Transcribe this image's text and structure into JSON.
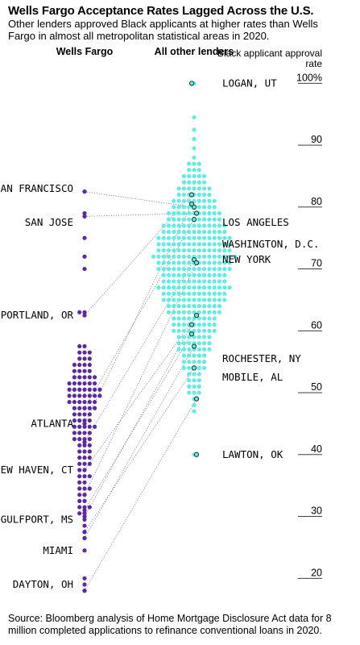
{
  "header": {
    "title": "Wells Fargo Acceptance Rates Lagged Across the U.S.",
    "subtitle": "Other lenders approved Black applicants at higher rates than Wells Fargo in almost all metropolitan statistical areas in 2020."
  },
  "footer": {
    "source": "Source: Bloomberg analysis of Home Mortgage Disclosure Act data for 8 million completed applications to refinance conventional loans in 2020."
  },
  "colors": {
    "wells_fargo": "#5b2aa0",
    "other_lenders": "#62ece2",
    "connector": "#7a7a7a",
    "highlight_ring": "#1f3a3a"
  },
  "chart_data": {
    "type": "scatter",
    "subtype": "beeswarm-slope",
    "series": [
      {
        "name": "Wells Fargo",
        "color": "#5b2aa0"
      },
      {
        "name": "All other lenders",
        "color": "#62ece2"
      }
    ],
    "y_axis": {
      "label": "Black applicant approval rate",
      "unit": "%",
      "range": [
        16,
        102
      ],
      "ticks": [
        {
          "value": 100,
          "label": "100%"
        },
        {
          "value": 90,
          "label": "90"
        },
        {
          "value": 80,
          "label": "80"
        },
        {
          "value": 70,
          "label": "70"
        },
        {
          "value": 60,
          "label": "60"
        },
        {
          "value": 50,
          "label": "50"
        },
        {
          "value": 40,
          "label": "40"
        },
        {
          "value": 30,
          "label": "30"
        },
        {
          "value": 20,
          "label": "20"
        }
      ]
    },
    "wells_fargo_distribution": [
      [
        82.5,
        1
      ],
      [
        79,
        1
      ],
      [
        78.5,
        1
      ],
      [
        75,
        1
      ],
      [
        72,
        1
      ],
      [
        70,
        1
      ],
      [
        63,
        2
      ],
      [
        57.5,
        2
      ],
      [
        56.5,
        3
      ],
      [
        55.5,
        3
      ],
      [
        54.5,
        4
      ],
      [
        53.5,
        4
      ],
      [
        52.5,
        5
      ],
      [
        51.5,
        6
      ],
      [
        50.5,
        7
      ],
      [
        49.5,
        7
      ],
      [
        48.5,
        6
      ],
      [
        47.5,
        5
      ],
      [
        46.5,
        4
      ],
      [
        45.5,
        4
      ],
      [
        44.5,
        5
      ],
      [
        43.5,
        4
      ],
      [
        42.5,
        4
      ],
      [
        41.5,
        3
      ],
      [
        40.5,
        3
      ],
      [
        39.5,
        3
      ],
      [
        38.5,
        3
      ],
      [
        37.5,
        2
      ],
      [
        36.5,
        3
      ],
      [
        35.5,
        2
      ],
      [
        34.5,
        3
      ],
      [
        33.5,
        2
      ],
      [
        32.5,
        2
      ],
      [
        31.5,
        3
      ],
      [
        30.5,
        2
      ],
      [
        29.5,
        1
      ],
      [
        28.5,
        1
      ],
      [
        27.5,
        1
      ],
      [
        26.5,
        1
      ],
      [
        24.5,
        1
      ],
      [
        20,
        1
      ],
      [
        19,
        1
      ],
      [
        18,
        1
      ]
    ],
    "other_lenders_distribution": [
      [
        100,
        1
      ],
      [
        94.5,
        1
      ],
      [
        92.5,
        1
      ],
      [
        91,
        1
      ],
      [
        89.5,
        1
      ],
      [
        88,
        1
      ],
      [
        87,
        3
      ],
      [
        86,
        3
      ],
      [
        85,
        5
      ],
      [
        84,
        5
      ],
      [
        83,
        7
      ],
      [
        82,
        7
      ],
      [
        81,
        9
      ],
      [
        80,
        9
      ],
      [
        79,
        11
      ],
      [
        78,
        11
      ],
      [
        77,
        13
      ],
      [
        76,
        13
      ],
      [
        75,
        15
      ],
      [
        74,
        15
      ],
      [
        73,
        15
      ],
      [
        72,
        17
      ],
      [
        71,
        15
      ],
      [
        70,
        15
      ],
      [
        69,
        13
      ],
      [
        68,
        13
      ],
      [
        67,
        15
      ],
      [
        66,
        13
      ],
      [
        65,
        13
      ],
      [
        64,
        11
      ],
      [
        63,
        11
      ],
      [
        62,
        9
      ],
      [
        61,
        9
      ],
      [
        60,
        9
      ],
      [
        59,
        7
      ],
      [
        58,
        7
      ],
      [
        57,
        7
      ],
      [
        56,
        5
      ],
      [
        55,
        5
      ],
      [
        54,
        5
      ],
      [
        53,
        3
      ],
      [
        52,
        3
      ],
      [
        51,
        3
      ],
      [
        50,
        3
      ],
      [
        49,
        1
      ],
      [
        48,
        1
      ],
      [
        47,
        1
      ],
      [
        40,
        1
      ]
    ],
    "cities": [
      {
        "name": "LOGAN, UT",
        "other": 100
      },
      {
        "name": "SAN FRANCISCO",
        "wells": 82.5,
        "other": 80
      },
      {
        "name": "SAN JOSE",
        "wells": 78.5,
        "other": 79
      },
      {
        "name": "LOS ANGELES",
        "wells": 45,
        "other": 80.5
      },
      {
        "name": "WASHINGTON, D.C.",
        "wells": 42,
        "other": 71.5
      },
      {
        "name": "NEW YORK",
        "wells": 33.5,
        "other": 71
      },
      {
        "name": "PORTLAND, OR",
        "wells": 62.5,
        "other": 82
      },
      {
        "name": "ATLANTA",
        "wells": 47.5,
        "other": 78
      },
      {
        "name": "NEW HAVEN, CT",
        "wells": 37.5,
        "other": 62.5
      },
      {
        "name": "GULFPORT, MS",
        "wells": 31,
        "other": 59.5
      },
      {
        "name": "MIAMI",
        "wells": 26.5,
        "other": 57.5
      },
      {
        "name": "DAYTON, OH",
        "wells": 18,
        "other": 49
      },
      {
        "name": "ROCHESTER, NY",
        "wells": 30,
        "other": 61
      },
      {
        "name": "MOBILE, AL",
        "wells": 27.5,
        "other": 54
      },
      {
        "name": "LAWTON, OK",
        "other": 40
      }
    ]
  }
}
